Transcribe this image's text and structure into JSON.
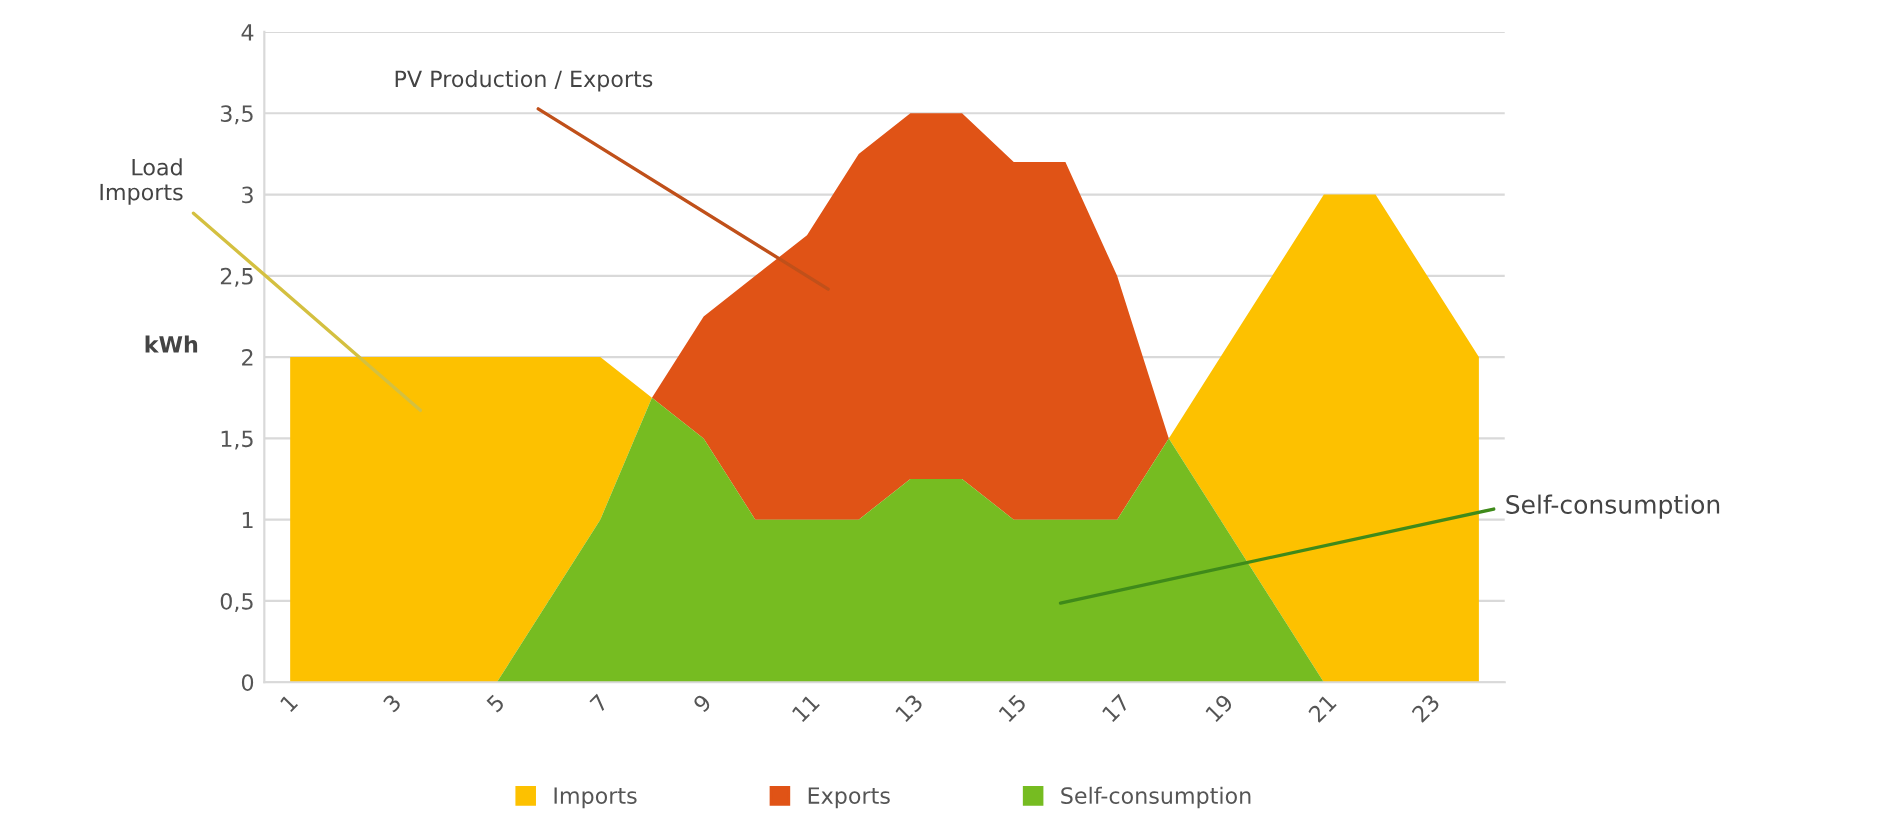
{
  "chart_data": {
    "type": "area",
    "stacked": true,
    "ylabel": "kWh",
    "categories": [
      "1",
      null,
      "3",
      null,
      "5",
      null,
      "7",
      null,
      "9",
      null,
      "11",
      null,
      "13",
      null,
      "15",
      null,
      "17",
      null,
      "19",
      null,
      "21",
      null,
      "23",
      null
    ],
    "series": [
      {
        "name": "Self-consumption",
        "color": "#76bc21",
        "values": [
          0,
          0,
          0,
          0,
          0,
          0.5,
          1.0,
          1.75,
          1.5,
          1.0,
          1.0,
          1.0,
          1.25,
          1.25,
          1.0,
          1.0,
          1.0,
          1.5,
          1.0,
          0.5,
          0,
          0,
          0,
          0
        ]
      },
      {
        "name": "Exports",
        "color": "#e05316",
        "values": [
          null,
          null,
          null,
          null,
          null,
          null,
          null,
          0,
          0.75,
          1.5,
          1.75,
          2.25,
          2.25,
          2.25,
          2.2,
          2.2,
          1.5,
          0,
          null,
          null,
          null,
          null,
          null,
          null
        ]
      },
      {
        "name": "Imports",
        "color": "#fdc100",
        "values": [
          2,
          2,
          2,
          2,
          2,
          1.5,
          1.0,
          0,
          null,
          null,
          null,
          null,
          null,
          null,
          null,
          null,
          null,
          0,
          1.0,
          2.0,
          3,
          3,
          2.5,
          2
        ]
      }
    ],
    "ylim": [
      0,
      4
    ],
    "yticks": [
      0,
      {
        "value": 0.5,
        "label": "0,5"
      },
      1,
      {
        "value": 1.5,
        "label": "1,5"
      },
      2,
      {
        "value": 2.5,
        "label": "2,5"
      },
      3,
      {
        "value": 3.5,
        "label": "3,5"
      },
      4
    ],
    "grid": "y",
    "legend": "bottom",
    "annotations": [
      "PV Production / Exports",
      "Load\nImports",
      "Self-consumption"
    ]
  }
}
